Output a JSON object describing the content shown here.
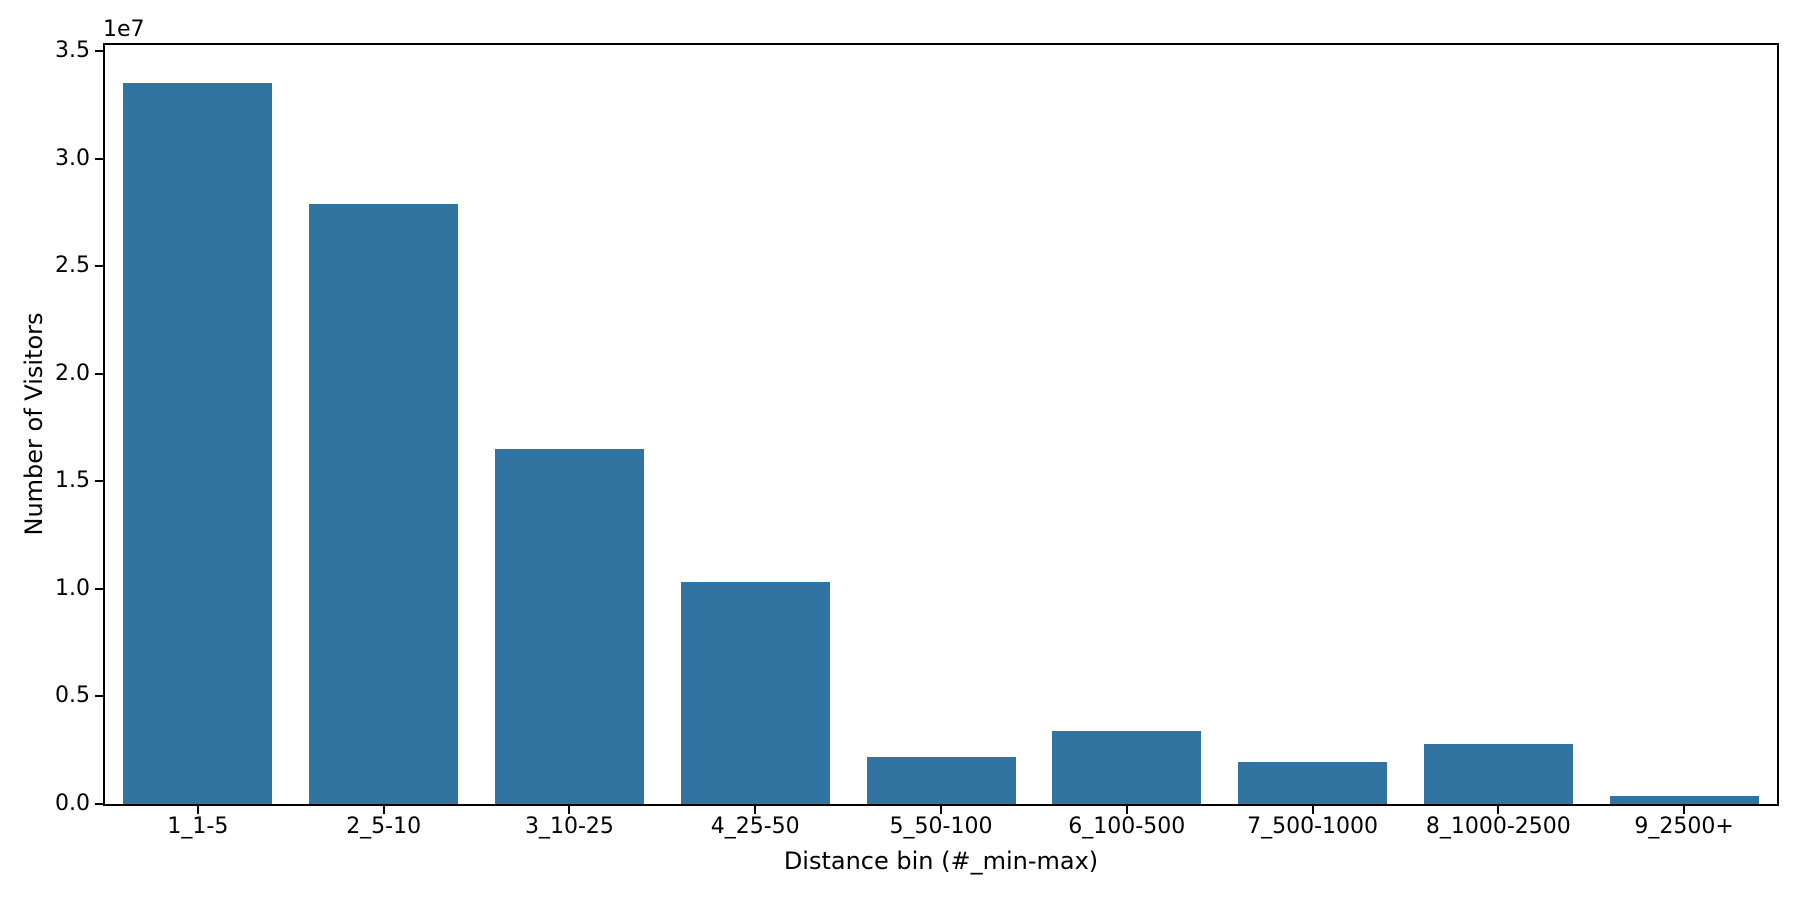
{
  "figure": {
    "background_color": "#ffffff"
  },
  "chart_data": {
    "type": "bar",
    "title": "",
    "xlabel": "Distance bin (#_min-max)",
    "ylabel": "Number of Visitors",
    "y_scale_offset_label": "1e7",
    "categories": [
      "1_1-5",
      "2_5-10",
      "3_10-25",
      "4_25-50",
      "5_50-100",
      "6_100-500",
      "7_500-1000",
      "8_1000-2500",
      "9_2500+"
    ],
    "values": [
      33500000,
      27900000,
      16500000,
      10300000,
      2170000,
      3390000,
      1950000,
      2790000,
      350000
    ],
    "y_ticks": [
      0,
      5000000,
      10000000,
      15000000,
      20000000,
      25000000,
      30000000,
      35000000
    ],
    "y_tick_labels": [
      "0.0",
      "0.5",
      "1.0",
      "1.5",
      "2.0",
      "2.5",
      "3.0",
      "3.5"
    ],
    "ylim": [
      0,
      35280000
    ],
    "bar_color": "#3274a1",
    "axis_color": "#000000",
    "grid": false,
    "legend": null
  }
}
